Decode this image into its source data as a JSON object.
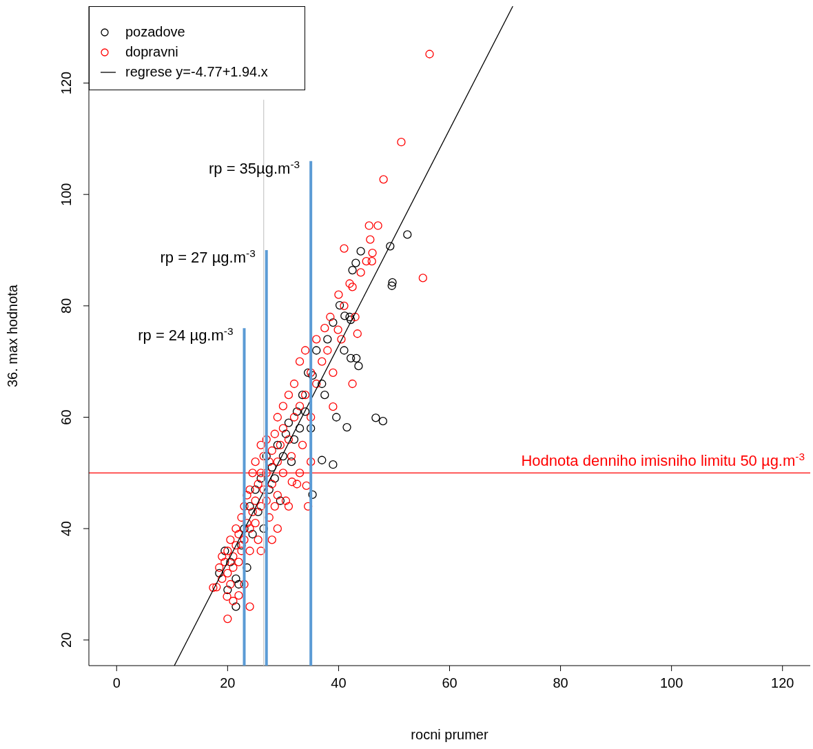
{
  "chart_data": {
    "type": "scatter",
    "xlabel": "rocni prumer",
    "ylabel": "36. max hodnota",
    "xlim": [
      -5,
      125
    ],
    "ylim": [
      15.4,
      133.8
    ],
    "xticks": [
      0,
      20,
      40,
      60,
      80,
      100,
      120
    ],
    "yticks": [
      20,
      40,
      60,
      80,
      100,
      120
    ],
    "grid": false,
    "legend": "top left",
    "series": [
      {
        "name": "pozadove",
        "marker": "circle",
        "color": "#000000",
        "x": [
          44.0,
          49.3,
          52.4,
          49.7,
          49.6,
          43.1,
          42.5,
          42.2,
          43.2,
          43.6,
          46.7,
          48.0,
          37.0,
          39.0,
          41.5,
          39.6,
          41.1,
          42.2,
          40.2,
          35.3,
          37.5,
          35.3,
          18.5,
          19.5,
          20,
          20.5,
          21.5,
          21.5,
          22,
          22.5,
          23,
          23.5,
          24,
          24.5,
          25,
          25.5,
          26,
          26.5,
          27,
          27.5,
          28,
          28.5,
          29,
          29.5,
          30,
          30.5,
          31,
          31.5,
          32,
          32.5,
          33,
          33.5,
          34,
          34.5,
          35,
          36,
          37,
          38,
          39,
          41,
          42
        ],
        "values": [
          89.8,
          90.7,
          92.8,
          84.2,
          83.6,
          87.7,
          86.4,
          70.6,
          70.6,
          69.2,
          59.9,
          59.3,
          52.3,
          51.5,
          58.2,
          60.0,
          78.2,
          77.5,
          80.1,
          67.5,
          64.0,
          46.1,
          32,
          36,
          29,
          34,
          26,
          31,
          30,
          37,
          40,
          33,
          44,
          39,
          47,
          43,
          49,
          40,
          53,
          47,
          51,
          49,
          55,
          45,
          53,
          57,
          59,
          52,
          56,
          61,
          58,
          64,
          61,
          68,
          58,
          72,
          66,
          74,
          77,
          72,
          78
        ]
      },
      {
        "name": "dopravni",
        "marker": "circle",
        "color": "#ff0000",
        "x": [
          56.4,
          51.3,
          48.1,
          55.2,
          45.5,
          47.1,
          45.7,
          41.0,
          46.1,
          42.5,
          43.4,
          42.5,
          39.0,
          39.9,
          20.0,
          19.9,
          17.4,
          34.5,
          34.2,
          31.6,
          18,
          18.5,
          19,
          19,
          19.5,
          20,
          20,
          20.5,
          20.5,
          21,
          21,
          21.5,
          21.5,
          22,
          22,
          22,
          22.5,
          22.5,
          23,
          23,
          23.5,
          23.5,
          24,
          24,
          24,
          24.5,
          24.5,
          25,
          25,
          25,
          25.5,
          25.5,
          26,
          26,
          26,
          26.5,
          26.5,
          27,
          27,
          27,
          27.5,
          27.5,
          28,
          28,
          28,
          28.5,
          28.5,
          29,
          29,
          29,
          29.5,
          30,
          30,
          30,
          30.5,
          31,
          31,
          31.5,
          32,
          32,
          32.5,
          33,
          33,
          33.5,
          34,
          34,
          35,
          35,
          36,
          36,
          37,
          37.5,
          38,
          38.5,
          39,
          40,
          40.5,
          41,
          42,
          43,
          44,
          45,
          46,
          24,
          21,
          23,
          26,
          29,
          31,
          33,
          35
        ],
        "values": [
          125.2,
          109.4,
          102.7,
          85.0,
          94.4,
          94.4,
          91.9,
          90.3,
          89.5,
          83.4,
          75.0,
          66.0,
          61.9,
          75.7,
          23.8,
          27.8,
          29.4,
          44.0,
          47.7,
          48.4,
          29.5,
          33,
          31,
          35,
          34,
          32,
          36,
          30,
          38,
          33,
          35,
          37,
          40,
          28,
          34,
          39,
          42,
          36,
          44,
          38,
          41,
          46,
          40,
          47,
          36,
          43,
          50,
          45,
          41,
          52,
          48,
          38,
          44,
          50,
          55,
          47,
          53,
          45,
          50,
          56,
          42,
          52,
          48,
          54,
          38,
          57,
          44,
          52,
          60,
          46,
          55,
          50,
          58,
          62,
          45,
          56,
          64,
          53,
          60,
          66,
          48,
          62,
          70,
          55,
          64,
          72,
          68,
          60,
          74,
          66,
          70,
          76,
          72,
          78,
          68,
          82,
          74,
          80,
          84,
          78,
          86,
          88,
          88,
          26,
          27,
          30,
          36,
          40,
          44,
          50,
          52
        ]
      },
      {
        "name": "regrese y=-4.77+1.94.x",
        "type": "line",
        "marker": "none",
        "color": "#000000",
        "x": [
          10.4,
          71.4
        ],
        "values": [
          15.4,
          133.8
        ]
      },
      {
        "type": "line",
        "marker": "none",
        "color": "#cccccc",
        "x": [
          26.5,
          26.5
        ],
        "values": [
          15.4,
          117
        ]
      },
      {
        "type": "line",
        "marker": "none",
        "color": "#5b9bd5",
        "x": [
          23,
          23
        ],
        "values": [
          15.4,
          76
        ]
      },
      {
        "type": "line",
        "marker": "none",
        "color": "#5b9bd5",
        "x": [
          27,
          27
        ],
        "values": [
          15.4,
          90
        ]
      },
      {
        "type": "line",
        "marker": "none",
        "color": "#5b9bd5",
        "x": [
          35,
          35
        ],
        "values": [
          15.4,
          106
        ]
      }
    ],
    "ref_lines": [
      {
        "axis": "y",
        "value": 50,
        "label": "Hodnota denniho imisniho limitu 50 µg.m$^{-3}$",
        "color": "#ff0000"
      }
    ],
    "annotations": [
      {
        "text": "rp = 24 µg.m$^{-3}$",
        "x": 23,
        "y": 76
      },
      {
        "text": "rp = 27 µg.m$^{-3}$",
        "x": 27,
        "y": 90
      },
      {
        "text": "rp = 35µg.m$^{-3}$",
        "x": 35,
        "y": 106
      }
    ]
  }
}
